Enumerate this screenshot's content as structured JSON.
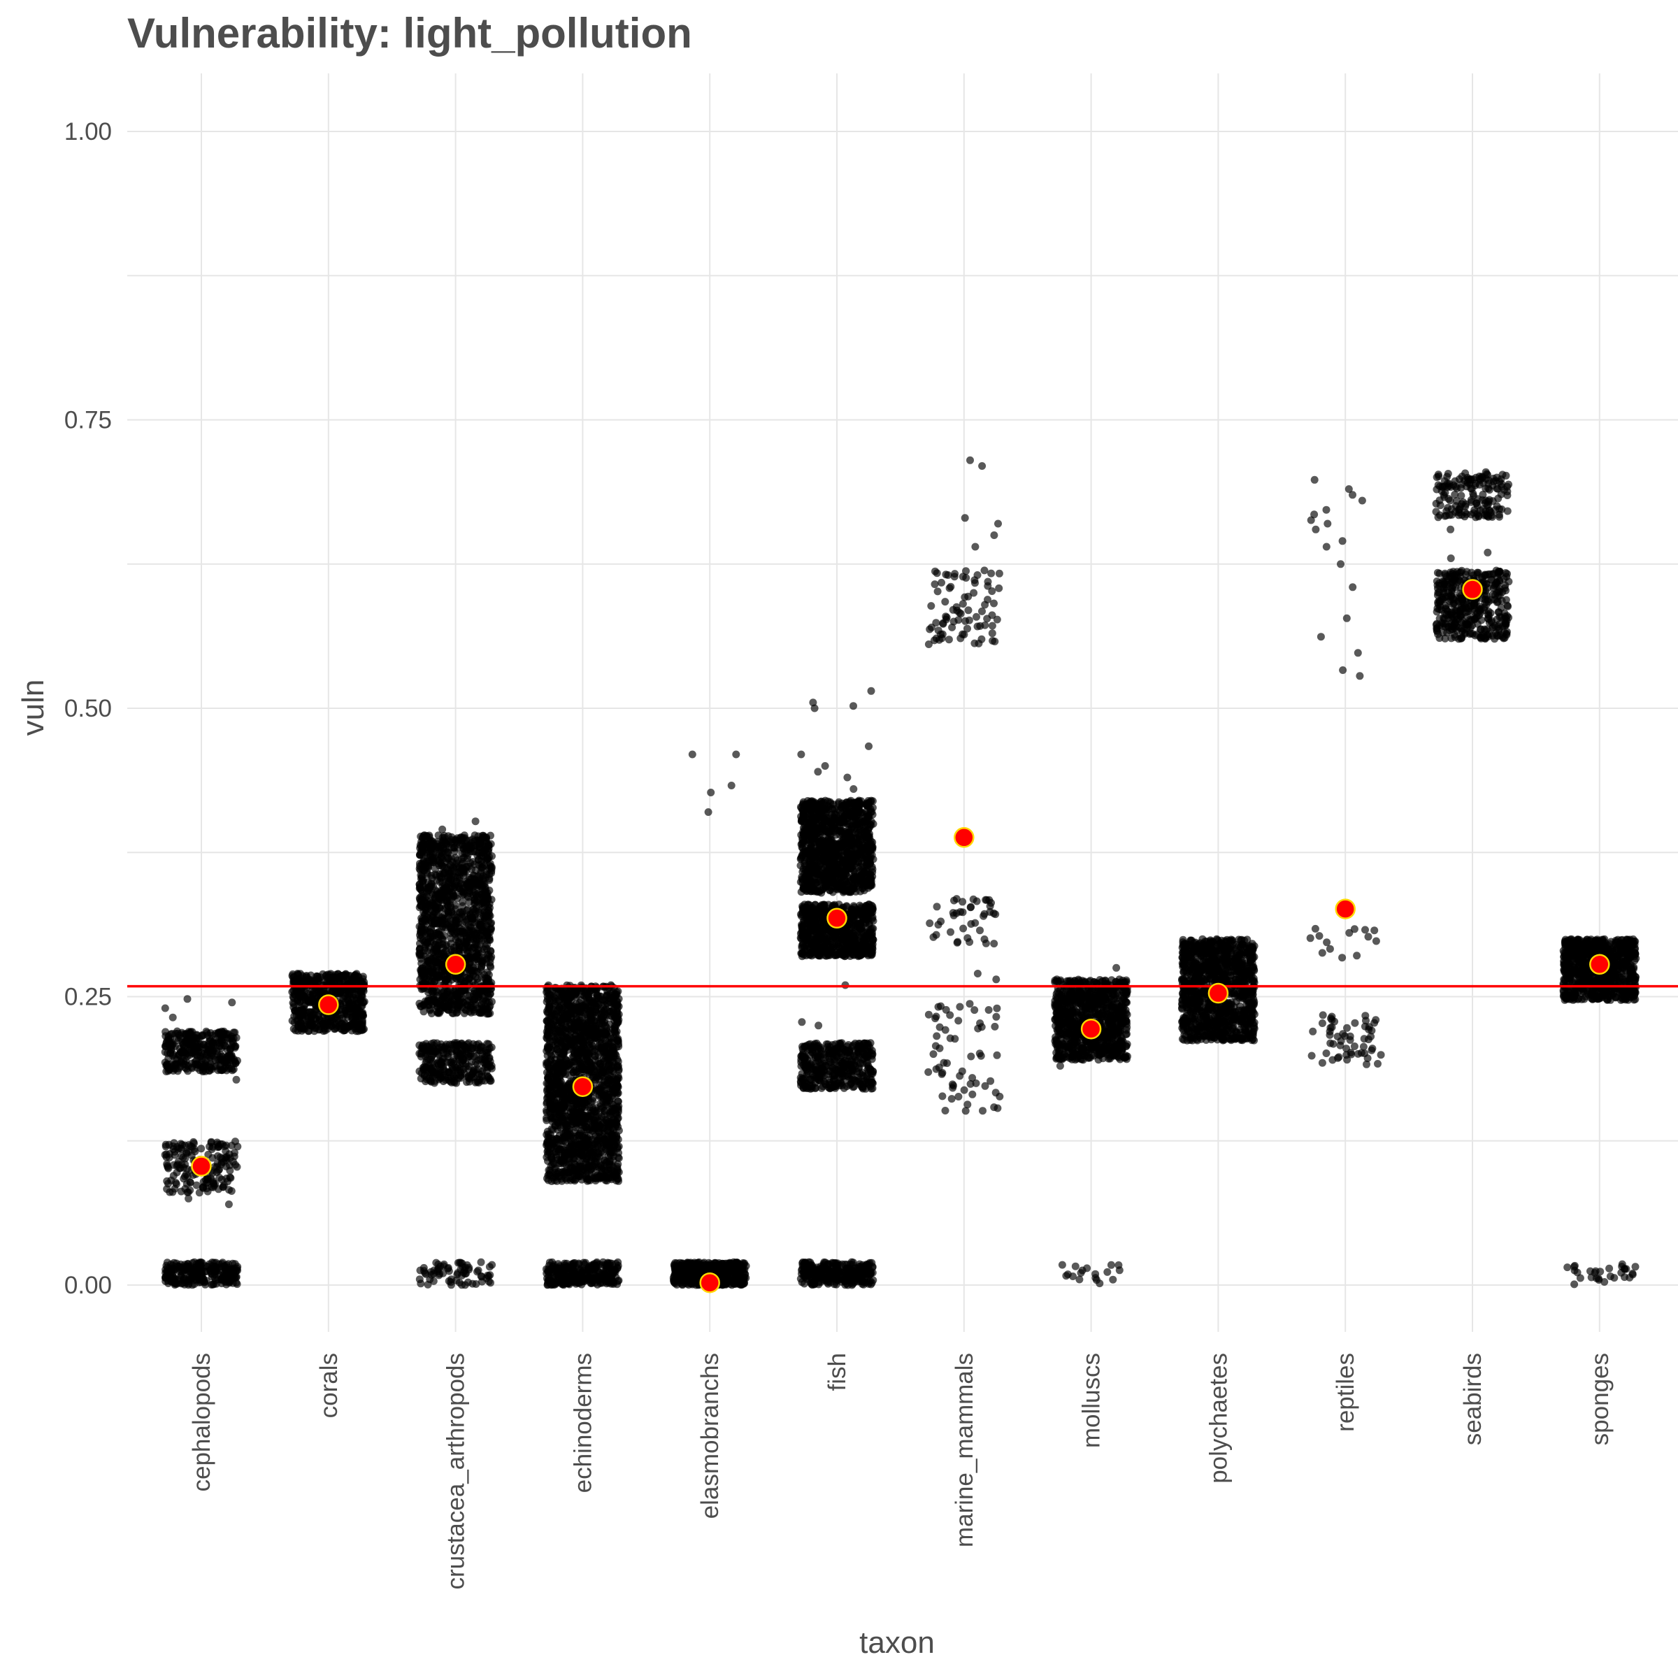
{
  "chart_data": {
    "type": "scatter",
    "title": "Vulnerability: light_pollution",
    "xlabel": "taxon",
    "ylabel": "vuln",
    "categories": [
      "cephalopods",
      "corals",
      "crustacea_arthropods",
      "echinoderms",
      "elasmobranchs",
      "fish",
      "marine_mammals",
      "molluscs",
      "polychaetes",
      "reptiles",
      "seabirds",
      "sponges"
    ],
    "y_ticks": [
      0.0,
      0.25,
      0.5,
      0.75,
      1.0
    ],
    "y_tick_labels": [
      "0.00",
      "0.25",
      "0.50",
      "0.75",
      "1.00"
    ],
    "ylim": [
      -0.05,
      1.05
    ],
    "grid": true,
    "reference_line": {
      "y": 0.259,
      "color": "#ff0000"
    },
    "point_color": "#000000",
    "mean_point": {
      "fill": "#ff0000",
      "stroke": "#ffd700"
    },
    "series": [
      {
        "category": "cephalopods",
        "mean": 0.103,
        "dense_clusters": [
          {
            "min": 0.0,
            "max": 0.02,
            "count": 260
          },
          {
            "min": 0.08,
            "max": 0.125,
            "count": 170
          },
          {
            "min": 0.185,
            "max": 0.22,
            "count": 330
          }
        ],
        "outliers": [
          0.07,
          0.075,
          0.232,
          0.24,
          0.245,
          0.248,
          0.178
        ]
      },
      {
        "category": "corals",
        "mean": 0.243,
        "dense_clusters": [
          {
            "min": 0.22,
            "max": 0.27,
            "count": 600
          }
        ],
        "outliers": []
      },
      {
        "category": "crustacea_arthropods",
        "mean": 0.278,
        "dense_clusters": [
          {
            "min": 0.0,
            "max": 0.02,
            "count": 70
          },
          {
            "min": 0.175,
            "max": 0.21,
            "count": 300
          },
          {
            "min": 0.235,
            "max": 0.39,
            "count": 1400
          }
        ],
        "outliers": [
          0.402,
          0.395
        ]
      },
      {
        "category": "echinoderms",
        "mean": 0.172,
        "dense_clusters": [
          {
            "min": 0.0,
            "max": 0.02,
            "count": 300
          },
          {
            "min": 0.09,
            "max": 0.26,
            "count": 1800
          }
        ],
        "outliers": []
      },
      {
        "category": "elasmobranchs",
        "mean": 0.002,
        "dense_clusters": [
          {
            "min": 0.0,
            "max": 0.02,
            "count": 500
          }
        ],
        "outliers": [
          0.41,
          0.427,
          0.433,
          0.46,
          0.46
        ]
      },
      {
        "category": "fish",
        "mean": 0.318,
        "dense_clusters": [
          {
            "min": 0.0,
            "max": 0.02,
            "count": 300
          },
          {
            "min": 0.17,
            "max": 0.21,
            "count": 400
          },
          {
            "min": 0.285,
            "max": 0.33,
            "count": 700
          },
          {
            "min": 0.34,
            "max": 0.42,
            "count": 1100
          }
        ],
        "outliers": [
          0.26,
          0.225,
          0.228,
          0.45,
          0.46,
          0.467,
          0.5,
          0.502,
          0.505,
          0.515,
          0.44,
          0.445,
          0.43
        ]
      },
      {
        "category": "marine_mammals",
        "mean": 0.388,
        "dense_clusters": [
          {
            "min": 0.15,
            "max": 0.245,
            "count": 60
          },
          {
            "min": 0.295,
            "max": 0.335,
            "count": 40
          },
          {
            "min": 0.555,
            "max": 0.62,
            "count": 80
          }
        ],
        "outliers": [
          0.265,
          0.27,
          0.64,
          0.65,
          0.66,
          0.665,
          0.71,
          0.715
        ]
      },
      {
        "category": "molluscs",
        "mean": 0.222,
        "dense_clusters": [
          {
            "min": 0.0,
            "max": 0.02,
            "count": 18
          },
          {
            "min": 0.195,
            "max": 0.265,
            "count": 900
          }
        ],
        "outliers": [
          0.275,
          0.19
        ]
      },
      {
        "category": "polychaetes",
        "mean": 0.253,
        "dense_clusters": [
          {
            "min": 0.212,
            "max": 0.3,
            "count": 1100
          }
        ],
        "outliers": []
      },
      {
        "category": "reptiles",
        "mean": 0.326,
        "dense_clusters": [
          {
            "min": 0.19,
            "max": 0.235,
            "count": 55
          },
          {
            "min": 0.278,
            "max": 0.31,
            "count": 14
          }
        ],
        "outliers": [
          0.528,
          0.533,
          0.548,
          0.562,
          0.578,
          0.605,
          0.625,
          0.64,
          0.645,
          0.655,
          0.66,
          0.663,
          0.668,
          0.672,
          0.68,
          0.685,
          0.69,
          0.698
        ]
      },
      {
        "category": "seabirds",
        "mean": 0.603,
        "dense_clusters": [
          {
            "min": 0.56,
            "max": 0.62,
            "count": 400
          },
          {
            "min": 0.665,
            "max": 0.705,
            "count": 160
          }
        ],
        "outliers": [
          0.63,
          0.635,
          0.655
        ]
      },
      {
        "category": "sponges",
        "mean": 0.278,
        "dense_clusters": [
          {
            "min": 0.0,
            "max": 0.02,
            "count": 30
          },
          {
            "min": 0.247,
            "max": 0.3,
            "count": 800
          }
        ],
        "outliers": []
      }
    ]
  }
}
